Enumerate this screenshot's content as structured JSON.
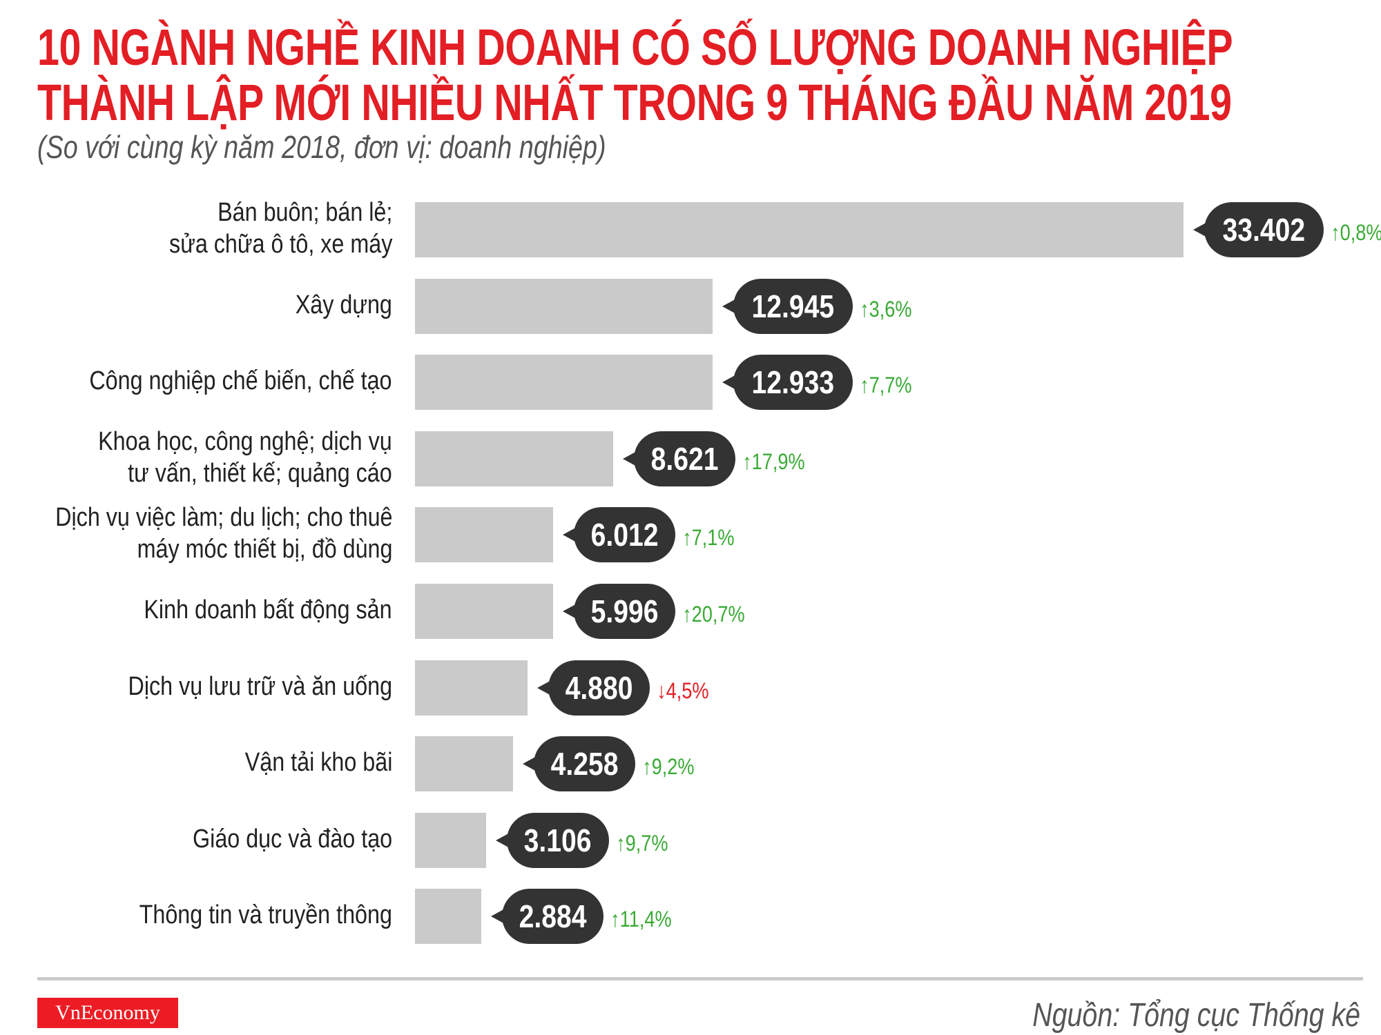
{
  "chart_data": {
    "type": "bar",
    "orientation": "horizontal",
    "title_line1": "10 NGÀNH NGHỀ KINH DOANH CÓ SỐ LƯỢNG DOANH NGHIỆP",
    "title_line2": "THÀNH LẬP MỚI NHIỀU NHẤT TRONG 9 THÁNG ĐẦU NĂM 2019",
    "subtitle": "(So với cùng kỳ năm 2018, đơn vị: doanh nghiệp)",
    "categories": [
      [
        "Bán buôn; bán lẻ;",
        "sửa chữa ô tô, xe máy"
      ],
      [
        "Xây dựng"
      ],
      [
        "Công nghiệp chế biến, chế tạo"
      ],
      [
        "Khoa học, công nghệ; dịch vụ",
        "tư vấn, thiết kế; quảng cáo"
      ],
      [
        "Dịch vụ việc làm; du lịch; cho thuê",
        "máy móc thiết bị, đồ dùng"
      ],
      [
        "Kinh doanh bất động sản"
      ],
      [
        "Dịch vụ lưu trữ và ăn uống"
      ],
      [
        "Vận tải kho bãi"
      ],
      [
        "Giáo dục và đào tạo"
      ],
      [
        "Thông tin và truyền thông"
      ]
    ],
    "values": [
      33402,
      12945,
      12933,
      8621,
      6012,
      5996,
      4880,
      4258,
      3106,
      2884
    ],
    "value_labels": [
      "33.402",
      "12.945",
      "12.933",
      "8.621",
      "6.012",
      "5.996",
      "4.880",
      "4.258",
      "3.106",
      "2.884"
    ],
    "changes": [
      "0,8%",
      "3,6%",
      "7,7%",
      "17,9%",
      "7,1%",
      "20,7%",
      "4,5%",
      "9,2%",
      "9,7%",
      "11,4%"
    ],
    "change_direction": [
      "up",
      "up",
      "up",
      "up",
      "up",
      "up",
      "down",
      "up",
      "up",
      "up"
    ],
    "colors": {
      "title": "#e31e24",
      "bar": "#cbcacb",
      "bubble": "#333333",
      "up": "#3aaa35",
      "down": "#e31e24"
    },
    "grid": false
  },
  "footer": {
    "logo": "VnEconomy",
    "source": "Nguồn: Tổng cục Thống kê"
  }
}
